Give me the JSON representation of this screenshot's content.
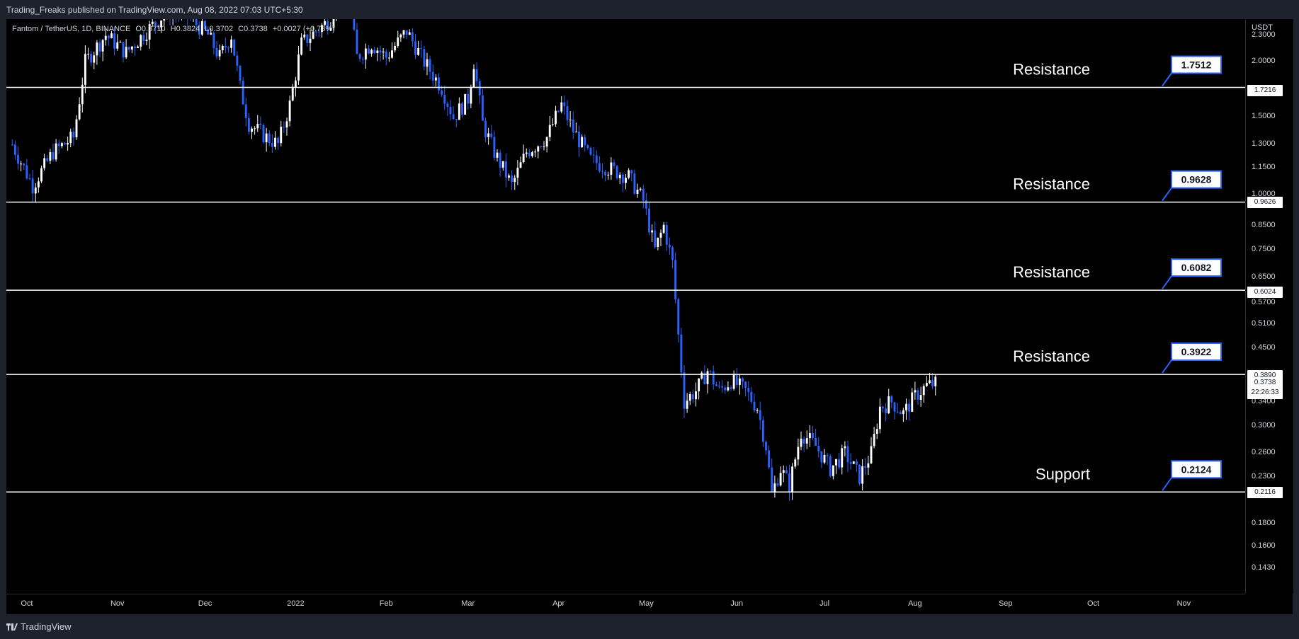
{
  "header": {
    "publisher_line": "Trading_Freaks published on TradingView.com, Aug 08, 2022 07:03 UTC+5:30"
  },
  "footer": {
    "brand": "TradingView"
  },
  "legend": {
    "symbol": "Fantom / TetherUS, 1D, BINANCE",
    "open": "O0.3710",
    "high": "H0.3824",
    "low": "L0.3702",
    "close": "C0.3738",
    "change": "+0.0027 (+0.73%)"
  },
  "colors": {
    "bull": "#ffffff",
    "bear": "#2962ff",
    "background": "#000000",
    "line": "#ffffff"
  },
  "chart_data": {
    "type": "candlestick",
    "title": "Fantom / TetherUS, 1D, BINANCE",
    "y_scale": "log",
    "y_unit": "USDT",
    "ylim": [
      0.125,
      2.5
    ],
    "y_ticks": [
      "2.3000",
      "2.0000",
      "1.7216",
      "1.5000",
      "1.3000",
      "1.1500",
      "1.0000",
      "0.9626",
      "0.8500",
      "0.7500",
      "0.6500",
      "0.6024",
      "0.5700",
      "0.5100",
      "0.4500",
      "0.3890",
      "0.3400",
      "0.3000",
      "0.2600",
      "0.2300",
      "0.2116",
      "0.1800",
      "0.1600",
      "0.1430"
    ],
    "x_ticks": [
      "Oct",
      "Nov",
      "Dec",
      "2022",
      "Feb",
      "Mar",
      "Apr",
      "May",
      "Jun",
      "Jul",
      "Aug",
      "Sep",
      "Oct",
      "Nov"
    ],
    "x_range": [
      "2021-09-24",
      "2022-11-22"
    ],
    "horizontal_lines": [
      {
        "label": "Resistance",
        "value": 1.7512,
        "value_label": "1.7512",
        "axis_label": "1.7216"
      },
      {
        "label": "Resistance",
        "value": 0.9628,
        "value_label": "0.9628",
        "axis_label": "0.9626"
      },
      {
        "label": "Resistance",
        "value": 0.6082,
        "value_label": "0.6082",
        "axis_label": "0.6024"
      },
      {
        "label": "Resistance",
        "value": 0.3922,
        "value_label": "0.3922",
        "axis_label": "0.3890"
      },
      {
        "label": "Support",
        "value": 0.2124,
        "value_label": "0.2124",
        "axis_label": "0.2116"
      }
    ],
    "last_price": {
      "value": "0.3738",
      "countdown": "22:26:33"
    },
    "series": [
      {
        "name": "",
        "values": [
          {
            "date": "2021-09-26",
            "close": 1.3
          },
          {
            "date": "2021-10-03",
            "close": 1.05
          },
          {
            "date": "2021-10-10",
            "close": 1.25
          },
          {
            "date": "2021-10-17",
            "close": 1.35
          },
          {
            "date": "2021-10-21",
            "close": 2.0
          },
          {
            "date": "2021-10-28",
            "close": 2.3
          },
          {
            "date": "2021-11-04",
            "close": 2.1
          },
          {
            "date": "2021-11-11",
            "close": 2.35
          },
          {
            "date": "2021-11-18",
            "close": 2.6
          },
          {
            "date": "2021-11-25",
            "close": 2.55
          },
          {
            "date": "2021-12-02",
            "close": 2.3
          },
          {
            "date": "2021-12-06",
            "close": 2.05
          },
          {
            "date": "2021-12-10",
            "close": 2.3
          },
          {
            "date": "2021-12-13",
            "close": 1.75
          },
          {
            "date": "2021-12-16",
            "close": 1.45
          },
          {
            "date": "2021-12-22",
            "close": 1.35
          },
          {
            "date": "2021-12-26",
            "close": 1.3
          },
          {
            "date": "2021-12-30",
            "close": 1.6
          },
          {
            "date": "2022-01-03",
            "close": 2.2
          },
          {
            "date": "2022-01-08",
            "close": 2.35
          },
          {
            "date": "2022-01-13",
            "close": 2.5
          },
          {
            "date": "2022-01-16",
            "close": 3.1
          },
          {
            "date": "2022-01-19",
            "close": 2.8
          },
          {
            "date": "2022-01-22",
            "close": 2.05
          },
          {
            "date": "2022-01-27",
            "close": 2.2
          },
          {
            "date": "2022-02-01",
            "close": 2.05
          },
          {
            "date": "2022-02-08",
            "close": 2.35
          },
          {
            "date": "2022-02-14",
            "close": 2.0
          },
          {
            "date": "2022-02-20",
            "close": 1.75
          },
          {
            "date": "2022-02-24",
            "close": 1.5
          },
          {
            "date": "2022-03-01",
            "close": 1.65
          },
          {
            "date": "2022-03-03",
            "close": 2.0
          },
          {
            "date": "2022-03-06",
            "close": 1.45
          },
          {
            "date": "2022-03-10",
            "close": 1.25
          },
          {
            "date": "2022-03-16",
            "close": 1.05
          },
          {
            "date": "2022-03-21",
            "close": 1.25
          },
          {
            "date": "2022-03-28",
            "close": 1.35
          },
          {
            "date": "2022-04-02",
            "close": 1.6
          },
          {
            "date": "2022-04-06",
            "close": 1.4
          },
          {
            "date": "2022-04-12",
            "close": 1.2
          },
          {
            "date": "2022-04-18",
            "close": 1.15
          },
          {
            "date": "2022-04-25",
            "close": 1.1
          },
          {
            "date": "2022-04-30",
            "close": 0.97
          },
          {
            "date": "2022-05-04",
            "close": 0.75
          },
          {
            "date": "2022-05-07",
            "close": 0.85
          },
          {
            "date": "2022-05-10",
            "close": 0.7
          },
          {
            "date": "2022-05-12",
            "close": 0.48
          },
          {
            "date": "2022-05-14",
            "close": 0.34
          },
          {
            "date": "2022-05-18",
            "close": 0.36
          },
          {
            "date": "2022-05-22",
            "close": 0.4
          },
          {
            "date": "2022-05-26",
            "close": 0.36
          },
          {
            "date": "2022-05-30",
            "close": 0.38
          },
          {
            "date": "2022-06-04",
            "close": 0.36
          },
          {
            "date": "2022-06-08",
            "close": 0.33
          },
          {
            "date": "2022-06-11",
            "close": 0.27
          },
          {
            "date": "2022-06-13",
            "close": 0.21
          },
          {
            "date": "2022-06-16",
            "close": 0.24
          },
          {
            "date": "2022-06-19",
            "close": 0.22
          },
          {
            "date": "2022-06-23",
            "close": 0.29
          },
          {
            "date": "2022-06-28",
            "close": 0.27
          },
          {
            "date": "2022-07-03",
            "close": 0.24
          },
          {
            "date": "2022-07-08",
            "close": 0.26
          },
          {
            "date": "2022-07-13",
            "close": 0.23
          },
          {
            "date": "2022-07-17",
            "close": 0.26
          },
          {
            "date": "2022-07-20",
            "close": 0.33
          },
          {
            "date": "2022-07-24",
            "close": 0.34
          },
          {
            "date": "2022-07-28",
            "close": 0.32
          },
          {
            "date": "2022-08-01",
            "close": 0.35
          },
          {
            "date": "2022-08-05",
            "close": 0.37
          },
          {
            "date": "2022-08-08",
            "close": 0.3738
          }
        ]
      }
    ]
  }
}
